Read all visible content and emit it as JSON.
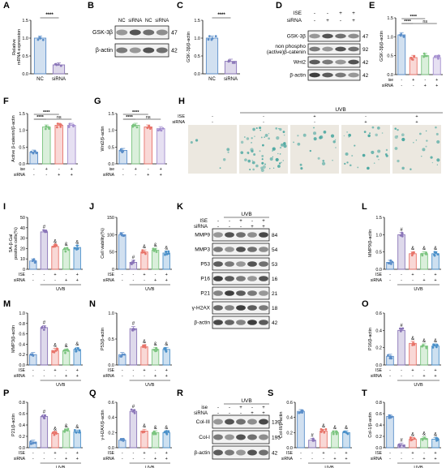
{
  "panel_letters": [
    "A",
    "B",
    "C",
    "D",
    "E",
    "F",
    "G",
    "H",
    "I",
    "J",
    "K",
    "L",
    "M",
    "N",
    "O",
    "P",
    "Q",
    "R",
    "S",
    "T"
  ],
  "sig": {
    "four_star": "****",
    "ns": "ns",
    "hash": "#",
    "amp": "&"
  },
  "conditions": {
    "ise": "ISE",
    "ise_lower": "ise",
    "sirna": "siRNA",
    "uvb": "UVB",
    "nc": "NC",
    "nc_sirna": "NCsiRNA",
    "plus": "+",
    "minus": "-"
  },
  "chart_data": [
    {
      "panel": "A",
      "type": "bar",
      "ylabel": "Relative\nmRNA expression",
      "categories": [
        "NC",
        "siRNA"
      ],
      "values": [
        1.0,
        0.25
      ],
      "ylim": [
        0,
        1.5
      ],
      "yticks": [
        "0.0",
        "0.5",
        "1.0",
        "1.5"
      ],
      "colors": [
        "#5b8ec9",
        "#8a75b8"
      ],
      "sig": "****"
    },
    {
      "panel": "C",
      "type": "bar",
      "ylabel": "GSK-3β/β-actin",
      "categories": [
        "NC",
        "siRNA"
      ],
      "values": [
        1.0,
        0.35
      ],
      "ylim": [
        0,
        1.5
      ],
      "yticks": [
        "0.0",
        "0.5",
        "1.0",
        "1.5"
      ],
      "colors": [
        "#5b8ec9",
        "#8a75b8"
      ],
      "sig": "****"
    },
    {
      "panel": "E",
      "type": "bar",
      "ylabel": "GSK-3β/β-actin",
      "values": [
        1.05,
        0.45,
        0.5,
        0.45
      ],
      "ylim": [
        0,
        1.5
      ],
      "yticks": [
        "0.0",
        "0.5",
        "1.0",
        "1.5"
      ],
      "colors": [
        "#5b8ec9",
        "#e8746a",
        "#7bc47f",
        "#a48fcf"
      ],
      "sig": [
        "****",
        "****",
        "ns"
      ]
    },
    {
      "panel": "F",
      "type": "bar",
      "ylabel": "Active β-catenin/β-actin",
      "values": [
        0.35,
        1.1,
        1.15,
        1.15
      ],
      "ylim": [
        0,
        1.5
      ],
      "yticks": [
        "0.0",
        "0.5",
        "1.0",
        "1.5"
      ],
      "colors": [
        "#5b8ec9",
        "#7bc47f",
        "#e8746a",
        "#a48fcf"
      ],
      "sig": [
        "****",
        "****",
        "ns"
      ]
    },
    {
      "panel": "G",
      "type": "bar",
      "ylabel": "Wnt2/β-actin",
      "values": [
        0.4,
        1.15,
        1.1,
        1.05
      ],
      "ylim": [
        0,
        1.5
      ],
      "yticks": [
        "0.0",
        "0.5",
        "1.0",
        "1.5"
      ],
      "colors": [
        "#5b8ec9",
        "#7bc47f",
        "#e8746a",
        "#a48fcf"
      ],
      "sig": [
        "****",
        "****",
        "ns"
      ]
    },
    {
      "panel": "I",
      "type": "bar",
      "ylabel": "SA-β-Gal\npositive cells(%)",
      "values": [
        8,
        36,
        22,
        19,
        21
      ],
      "ylim": [
        0,
        50
      ],
      "yticks": [
        "0",
        "10",
        "20",
        "30",
        "40",
        "50"
      ],
      "colors": [
        "#5b8ec9",
        "#8a75b8",
        "#e8746a",
        "#7bc47f",
        "#4a90c9"
      ]
    },
    {
      "panel": "J",
      "type": "bar",
      "ylabel": "Cell viability(%)",
      "values": [
        100,
        20,
        50,
        55,
        47
      ],
      "ylim": [
        0,
        150
      ],
      "yticks": [
        "0",
        "50",
        "100",
        "150"
      ],
      "colors": [
        "#5b8ec9",
        "#8a75b8",
        "#e8746a",
        "#7bc47f",
        "#4a90c9"
      ]
    },
    {
      "panel": "L",
      "type": "bar",
      "ylabel": "MMP9/β-actin",
      "values": [
        0.2,
        1.0,
        0.45,
        0.45,
        0.45
      ],
      "ylim": [
        0,
        1.5
      ],
      "yticks": [
        "0.0",
        "0.5",
        "1.0",
        "1.5"
      ],
      "colors": [
        "#5b8ec9",
        "#8a75b8",
        "#e8746a",
        "#7bc47f",
        "#4a90c9"
      ]
    },
    {
      "panel": "M",
      "type": "bar",
      "ylabel": "MMP3/β-actin",
      "values": [
        0.2,
        0.72,
        0.28,
        0.27,
        0.3
      ],
      "ylim": [
        0,
        1.0
      ],
      "yticks": [
        "0.0",
        "0.2",
        "0.4",
        "0.6",
        "0.8",
        "1.0"
      ],
      "colors": [
        "#5b8ec9",
        "#8a75b8",
        "#e8746a",
        "#7bc47f",
        "#4a90c9"
      ]
    },
    {
      "panel": "N",
      "type": "bar",
      "ylabel": "P53/β-actin",
      "values": [
        0.2,
        0.7,
        0.35,
        0.3,
        0.3
      ],
      "ylim": [
        0,
        1.0
      ],
      "yticks": [
        "0.0",
        "0.5",
        "1.0"
      ],
      "colors": [
        "#5b8ec9",
        "#8a75b8",
        "#e8746a",
        "#7bc47f",
        "#4a90c9"
      ]
    },
    {
      "panel": "O",
      "type": "bar",
      "ylabel": "P16/β-actin",
      "values": [
        0.1,
        0.4,
        0.25,
        0.22,
        0.22
      ],
      "ylim": [
        0,
        0.6
      ],
      "yticks": [
        "0.0",
        "0.2",
        "0.4",
        "0.6"
      ],
      "colors": [
        "#5b8ec9",
        "#8a75b8",
        "#e8746a",
        "#7bc47f",
        "#4a90c9"
      ]
    },
    {
      "panel": "P",
      "type": "bar",
      "ylabel": "P21/β-actin",
      "values": [
        0.1,
        0.55,
        0.25,
        0.3,
        0.28
      ],
      "ylim": [
        0,
        0.8
      ],
      "yticks": [
        "0.0",
        "0.2",
        "0.4",
        "0.6",
        "0.8"
      ],
      "colors": [
        "#5b8ec9",
        "#8a75b8",
        "#e8746a",
        "#7bc47f",
        "#4a90c9"
      ]
    },
    {
      "panel": "Q",
      "type": "bar",
      "ylabel": "γ-H2AX/β-actin",
      "values": [
        0.1,
        0.48,
        0.22,
        0.2,
        0.2
      ],
      "ylim": [
        0,
        0.6
      ],
      "yticks": [
        "0.0",
        "0.2",
        "0.4",
        "0.6"
      ],
      "colors": [
        "#5b8ec9",
        "#8a75b8",
        "#e8746a",
        "#7bc47f",
        "#4a90c9"
      ]
    },
    {
      "panel": "S",
      "type": "bar",
      "ylabel": "Col-III/β-actin",
      "values": [
        0.48,
        0.1,
        0.22,
        0.2,
        0.2
      ],
      "ylim": [
        0,
        0.6
      ],
      "yticks": [
        "0.0",
        "0.2",
        "0.4",
        "0.6"
      ],
      "colors": [
        "#5b8ec9",
        "#8a75b8",
        "#e8746a",
        "#7bc47f",
        "#4a90c9"
      ]
    },
    {
      "panel": "T",
      "type": "bar",
      "ylabel": "Col-1/β-actin",
      "values": [
        0.55,
        0.05,
        0.15,
        0.16,
        0.15
      ],
      "ylim": [
        0,
        0.8
      ],
      "yticks": [
        "0.0",
        "0.2",
        "0.4",
        "0.6",
        "0.8"
      ],
      "colors": [
        "#5b8ec9",
        "#8a75b8",
        "#e8746a",
        "#7bc47f",
        "#4a90c9"
      ]
    }
  ],
  "blots": {
    "B": {
      "lanes": [
        "NC",
        "siRNA",
        "NC",
        "siRNA"
      ],
      "bands": [
        {
          "label": "GSK-3β",
          "kda": "47"
        },
        {
          "label": "β-actin",
          "kda": "42"
        }
      ]
    },
    "D": {
      "rows": [
        {
          "name": "ISE",
          "values": [
            "-",
            "-",
            "+",
            "+"
          ]
        },
        {
          "name": "siRNA",
          "values": [
            "-",
            "+",
            "-",
            "+"
          ]
        }
      ],
      "bands": [
        {
          "label": "GSK-3β",
          "kda": "47"
        },
        {
          "label": "non phospho\n(active)β-catenin",
          "kda": "92"
        },
        {
          "label": "Wnt2",
          "kda": "42"
        },
        {
          "label": "β-actin",
          "kda": "42"
        }
      ]
    },
    "K": {
      "header": "UVB",
      "rows": [
        {
          "name": "ISE",
          "values": [
            "-",
            "-",
            "+",
            "-",
            "+"
          ]
        },
        {
          "name": "siRNA",
          "values": [
            "-",
            "-",
            "-",
            "+",
            "+"
          ]
        }
      ],
      "bands": [
        {
          "label": "MMP9",
          "kda": "84"
        },
        {
          "label": "MMP3",
          "kda": "54"
        },
        {
          "label": "P53",
          "kda": "53"
        },
        {
          "label": "P16",
          "kda": "16"
        },
        {
          "label": "P21",
          "kda": "21"
        },
        {
          "label": "γ-H2AX",
          "kda": "18"
        },
        {
          "label": "β-actin",
          "kda": "42"
        }
      ]
    },
    "R": {
      "header": "UVB",
      "rows": [
        {
          "name": "ise",
          "values": [
            "-",
            "-",
            "+",
            "-",
            "+"
          ]
        },
        {
          "name": "siRNA",
          "values": [
            "-",
            "-",
            "-",
            "+",
            "+"
          ]
        }
      ],
      "bands": [
        {
          "label": "Col-III",
          "kda": "139"
        },
        {
          "label": "Col-I",
          "kda": "195"
        },
        {
          "label": "β-actin",
          "kda": "42"
        }
      ]
    }
  },
  "micrographs": {
    "H": {
      "header": "UVB",
      "rows": [
        {
          "name": "ISE",
          "values": [
            "-",
            "-",
            "+",
            "-",
            "+"
          ]
        },
        {
          "name": "siRNA",
          "values": [
            "-",
            "-",
            "-",
            "+",
            "+"
          ]
        }
      ],
      "density": [
        0.08,
        0.85,
        0.3,
        0.4,
        0.35
      ]
    }
  },
  "colors": {
    "stain": "#4aa7a0",
    "bg_image": "#ece8e0",
    "band": "#2a2a2a"
  }
}
